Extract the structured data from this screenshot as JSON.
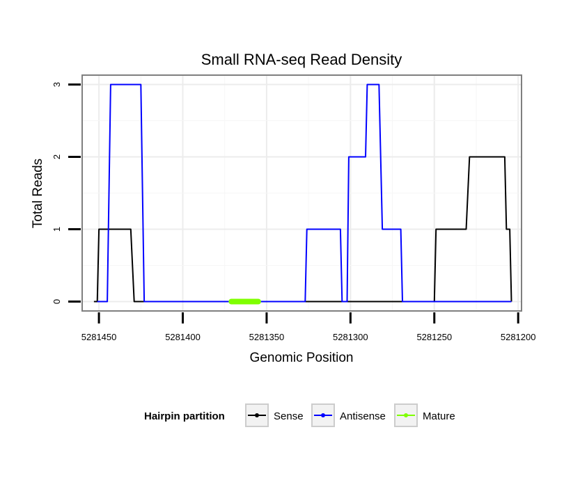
{
  "chart_data": {
    "type": "line",
    "title": "Small RNA-seq Read Density",
    "xlabel": "Genomic Position",
    "ylabel": "Total Reads",
    "x_reversed": true,
    "xlim": [
      5281460,
      5281198
    ],
    "ylim": [
      -0.13,
      3.13
    ],
    "x_ticks": [
      5281450,
      5281400,
      5281350,
      5281300,
      5281250,
      5281200
    ],
    "x_tick_labels": [
      "5281450",
      "5281400",
      "5281350",
      "5281300",
      "5281250",
      "5281200"
    ],
    "y_ticks": [
      0,
      1,
      2,
      3
    ],
    "y_tick_labels": [
      "0",
      "1",
      "2",
      "3"
    ],
    "grid": true,
    "legend": {
      "title": "Hairpin partition",
      "position": "bottom",
      "entries": [
        "Sense",
        "Antisense",
        "Mature"
      ]
    },
    "series": [
      {
        "name": "Sense",
        "color": "#000000",
        "points": [
          [
            5281453,
            0
          ],
          [
            5281451,
            0
          ],
          [
            5281450,
            1
          ],
          [
            5281431,
            1
          ],
          [
            5281429,
            0
          ],
          [
            5281250,
            0
          ],
          [
            5281249,
            1
          ],
          [
            5281231,
            1
          ],
          [
            5281229,
            2
          ],
          [
            5281208,
            2
          ],
          [
            5281207,
            1
          ],
          [
            5281205,
            1
          ],
          [
            5281204,
            0
          ]
        ]
      },
      {
        "name": "Antisense",
        "color": "#0000ff",
        "points": [
          [
            5281451,
            0
          ],
          [
            5281445,
            0
          ],
          [
            5281443,
            3
          ],
          [
            5281425,
            3
          ],
          [
            5281423,
            0
          ],
          [
            5281327,
            0
          ],
          [
            5281326,
            1
          ],
          [
            5281306,
            1
          ],
          [
            5281305,
            0
          ],
          [
            5281302,
            0
          ],
          [
            5281301,
            2
          ],
          [
            5281291,
            2
          ],
          [
            5281290,
            3
          ],
          [
            5281283,
            3
          ],
          [
            5281281,
            1
          ],
          [
            5281270,
            1
          ],
          [
            5281269,
            0
          ],
          [
            5281204,
            0
          ]
        ]
      },
      {
        "name": "Mature",
        "color": "#7fff00",
        "points": [
          [
            5281371,
            0
          ],
          [
            5281355,
            0
          ]
        ]
      }
    ]
  }
}
